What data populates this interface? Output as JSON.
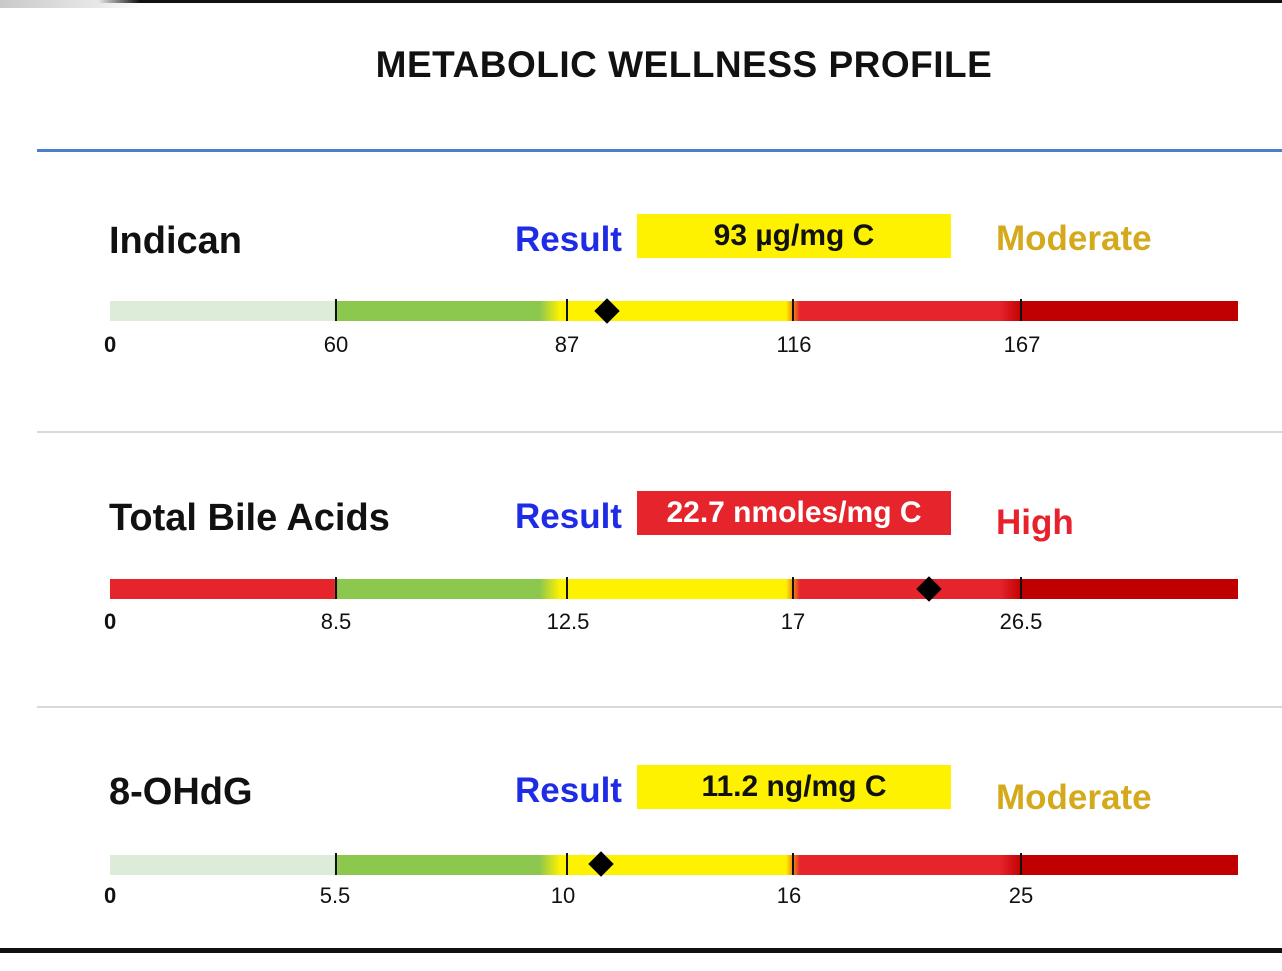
{
  "page": {
    "title": "METABOLIC WELLNESS PROFILE"
  },
  "ui": {
    "result_label": "Result"
  },
  "colors": {
    "result_label": "#1f2ce6",
    "moderate_text": "#d4a91c",
    "high_text": "#e8222c",
    "moderate_box": "#fff200",
    "high_box": "#e5242c",
    "zone_light_green": "#ddecd9",
    "zone_green": "#8dc84e",
    "zone_yellow": "#fff200",
    "zone_red": "#e5242c",
    "zone_dark_red": "#c00000"
  },
  "markers": [
    {
      "name": "Indican",
      "result": "93 µg/mg C",
      "status": "Moderate",
      "status_level": "moderate",
      "value": 93,
      "low_zone": "light-green",
      "ticks": [
        "0",
        "60",
        "87",
        "116",
        "167"
      ]
    },
    {
      "name": "Total Bile Acids",
      "result": "22.7 nmoles/mg C",
      "status": "High",
      "status_level": "high",
      "value": 22.7,
      "low_zone": "red",
      "ticks": [
        "0",
        "8.5",
        "12.5",
        "17",
        "26.5"
      ]
    },
    {
      "name": "8-OHdG",
      "result": "11.2 ng/mg C",
      "status": "Moderate",
      "status_level": "moderate",
      "value": 11.2,
      "low_zone": "light-green",
      "ticks": [
        "0",
        "5.5",
        "10",
        "16",
        "25"
      ]
    }
  ]
}
